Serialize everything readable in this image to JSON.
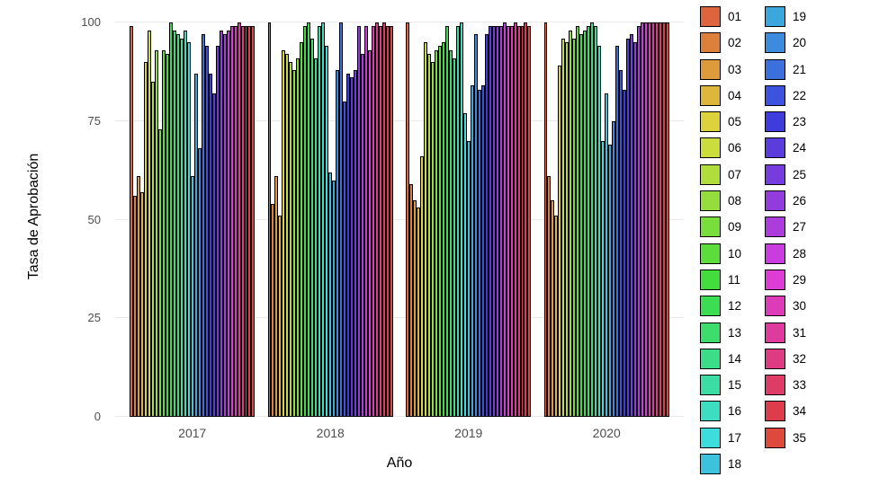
{
  "chart_data": {
    "type": "bar",
    "title": "",
    "xlabel": "Año",
    "ylabel": "Tasa de Aprobación",
    "categories": [
      "2017",
      "2018",
      "2019",
      "2020"
    ],
    "ylim": [
      0,
      100
    ],
    "yticks": [
      0,
      25,
      50,
      75,
      100
    ],
    "grid": true,
    "legend_position": "right",
    "legend_columns_split": 18,
    "palette": {
      "type": "ggplot-hue",
      "start_hue": 15,
      "saturation": 70,
      "lightness": 55
    },
    "series": [
      {
        "name": "01",
        "values": [
          99,
          100,
          100,
          100
        ]
      },
      {
        "name": "02",
        "values": [
          56,
          54,
          59,
          61
        ]
      },
      {
        "name": "03",
        "values": [
          61,
          61,
          55,
          55
        ]
      },
      {
        "name": "04",
        "values": [
          57,
          51,
          53,
          51
        ]
      },
      {
        "name": "05",
        "values": [
          90,
          93,
          66,
          89
        ]
      },
      {
        "name": "06",
        "values": [
          98,
          92,
          95,
          96
        ]
      },
      {
        "name": "07",
        "values": [
          85,
          90,
          92,
          95
        ]
      },
      {
        "name": "08",
        "values": [
          93,
          88,
          90,
          98
        ]
      },
      {
        "name": "09",
        "values": [
          73,
          91,
          93,
          96
        ]
      },
      {
        "name": "10",
        "values": [
          93,
          95,
          94,
          99
        ]
      },
      {
        "name": "11",
        "values": [
          92,
          99,
          95,
          97
        ]
      },
      {
        "name": "12",
        "values": [
          100,
          100,
          99,
          98
        ]
      },
      {
        "name": "13",
        "values": [
          98,
          96,
          93,
          99
        ]
      },
      {
        "name": "14",
        "values": [
          97,
          91,
          91,
          100
        ]
      },
      {
        "name": "15",
        "values": [
          96,
          99,
          99,
          99
        ]
      },
      {
        "name": "16",
        "values": [
          98,
          100,
          100,
          94
        ]
      },
      {
        "name": "17",
        "values": [
          95,
          94,
          77,
          70
        ]
      },
      {
        "name": "18",
        "values": [
          61,
          62,
          70,
          82
        ]
      },
      {
        "name": "19",
        "values": [
          87,
          60,
          84,
          69
        ]
      },
      {
        "name": "20",
        "values": [
          68,
          88,
          97,
          75
        ]
      },
      {
        "name": "21",
        "values": [
          97,
          100,
          83,
          94
        ]
      },
      {
        "name": "22",
        "values": [
          94,
          80,
          84,
          88
        ]
      },
      {
        "name": "23",
        "values": [
          87,
          87,
          97,
          83
        ]
      },
      {
        "name": "24",
        "values": [
          82,
          86,
          99,
          96
        ]
      },
      {
        "name": "25",
        "values": [
          94,
          88,
          99,
          97
        ]
      },
      {
        "name": "26",
        "values": [
          98,
          99,
          99,
          95
        ]
      },
      {
        "name": "27",
        "values": [
          97,
          92,
          99,
          99
        ]
      },
      {
        "name": "28",
        "values": [
          98,
          99,
          100,
          100
        ]
      },
      {
        "name": "29",
        "values": [
          99,
          93,
          99,
          100
        ]
      },
      {
        "name": "30",
        "values": [
          99,
          99,
          99,
          100
        ]
      },
      {
        "name": "31",
        "values": [
          100,
          100,
          100,
          100
        ]
      },
      {
        "name": "32",
        "values": [
          99,
          99,
          99,
          100
        ]
      },
      {
        "name": "33",
        "values": [
          99,
          100,
          99,
          100
        ]
      },
      {
        "name": "34",
        "values": [
          99,
          99,
          100,
          100
        ]
      },
      {
        "name": "35",
        "values": [
          99,
          99,
          99,
          100
        ]
      }
    ]
  },
  "colors": {
    "background": "#ffffff",
    "grid": "#e8e8e8",
    "axis_text": "#4d4d4d",
    "axis_title": "#000000",
    "bar_border": "#000000"
  }
}
